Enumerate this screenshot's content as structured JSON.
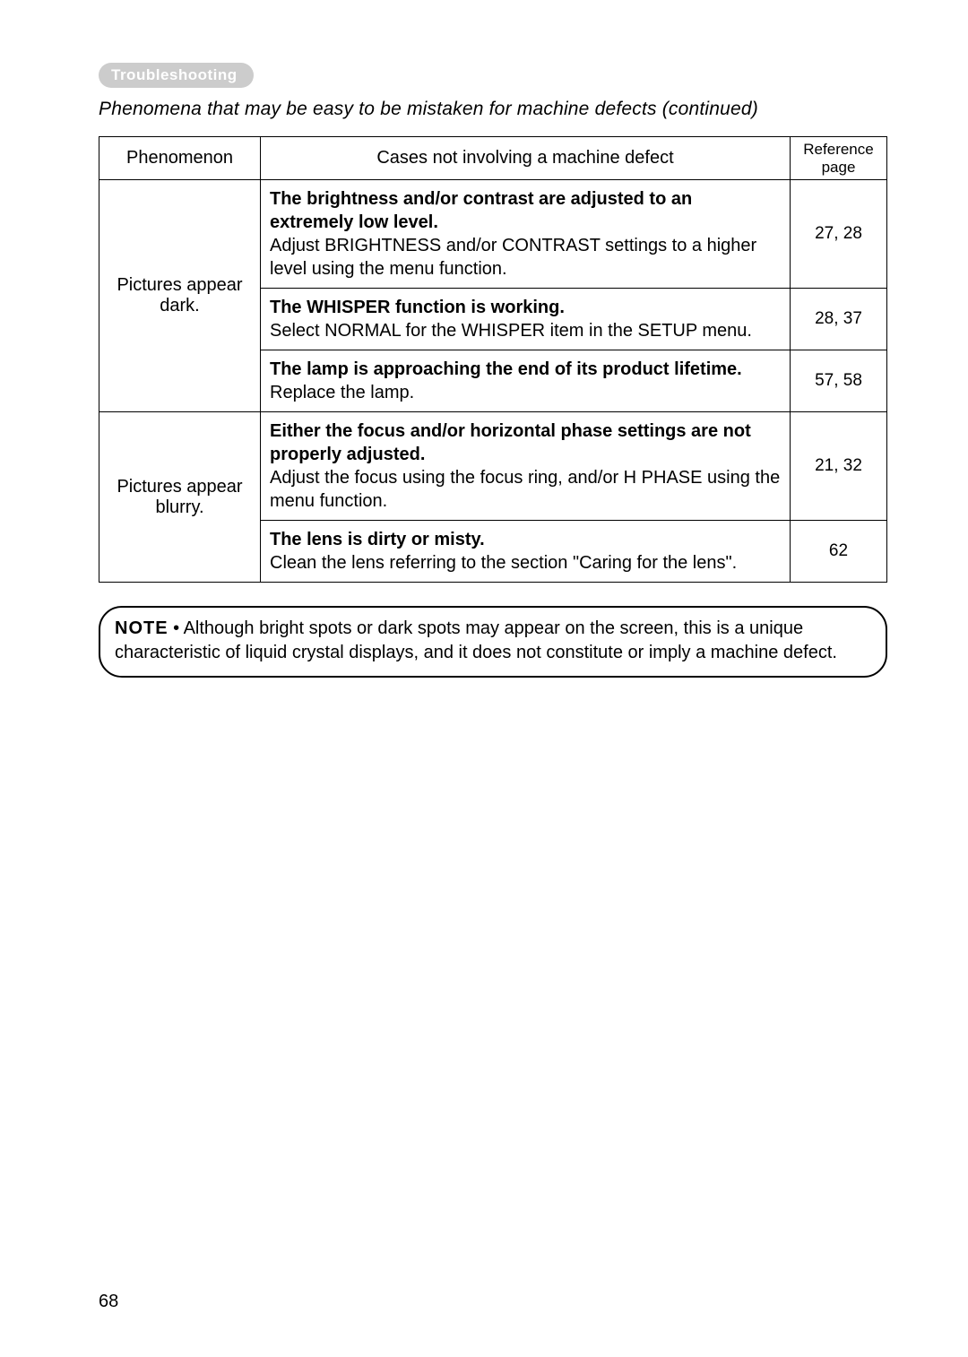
{
  "header": {
    "tag": "Troubleshooting",
    "subtitle": "Phenomena that may be easy to be mistaken for machine defects (continued)"
  },
  "table": {
    "headers": {
      "phenomenon": "Phenomenon",
      "cases": "Cases not involving a machine defect",
      "reference": "Reference page"
    },
    "groups": [
      {
        "phenomenon": "Pictures appear dark.",
        "rows": [
          {
            "bold": "The brightness and/or contrast are adjusted to an extremely low level.",
            "normal": "Adjust BRIGHTNESS and/or CONTRAST settings to a higher level using the menu function.",
            "ref": "27, 28"
          },
          {
            "bold": "The WHISPER function is working.",
            "normal": "Select NORMAL for the WHISPER item in the SETUP menu.",
            "ref": "28, 37"
          },
          {
            "bold": "The lamp is approaching the end of its product lifetime.",
            "normal": "Replace the lamp.",
            "ref": "57, 58"
          }
        ]
      },
      {
        "phenomenon": "Pictures appear blurry.",
        "rows": [
          {
            "bold": "Either the focus and/or horizontal phase settings are not properly adjusted.",
            "normal": "Adjust the focus using the focus ring, and/or H PHASE using the menu function.",
            "ref": "21, 32"
          },
          {
            "bold": "The lens is dirty or misty.",
            "normal": "Clean the lens referring to the section \"Caring for the lens\".",
            "ref": "62"
          }
        ]
      }
    ]
  },
  "note": {
    "label": "NOTE",
    "text": " • Although bright spots or dark spots may appear on the screen, this is a unique characteristic of liquid crystal displays, and it does not constitute or imply a machine defect."
  },
  "pageNumber": "68"
}
